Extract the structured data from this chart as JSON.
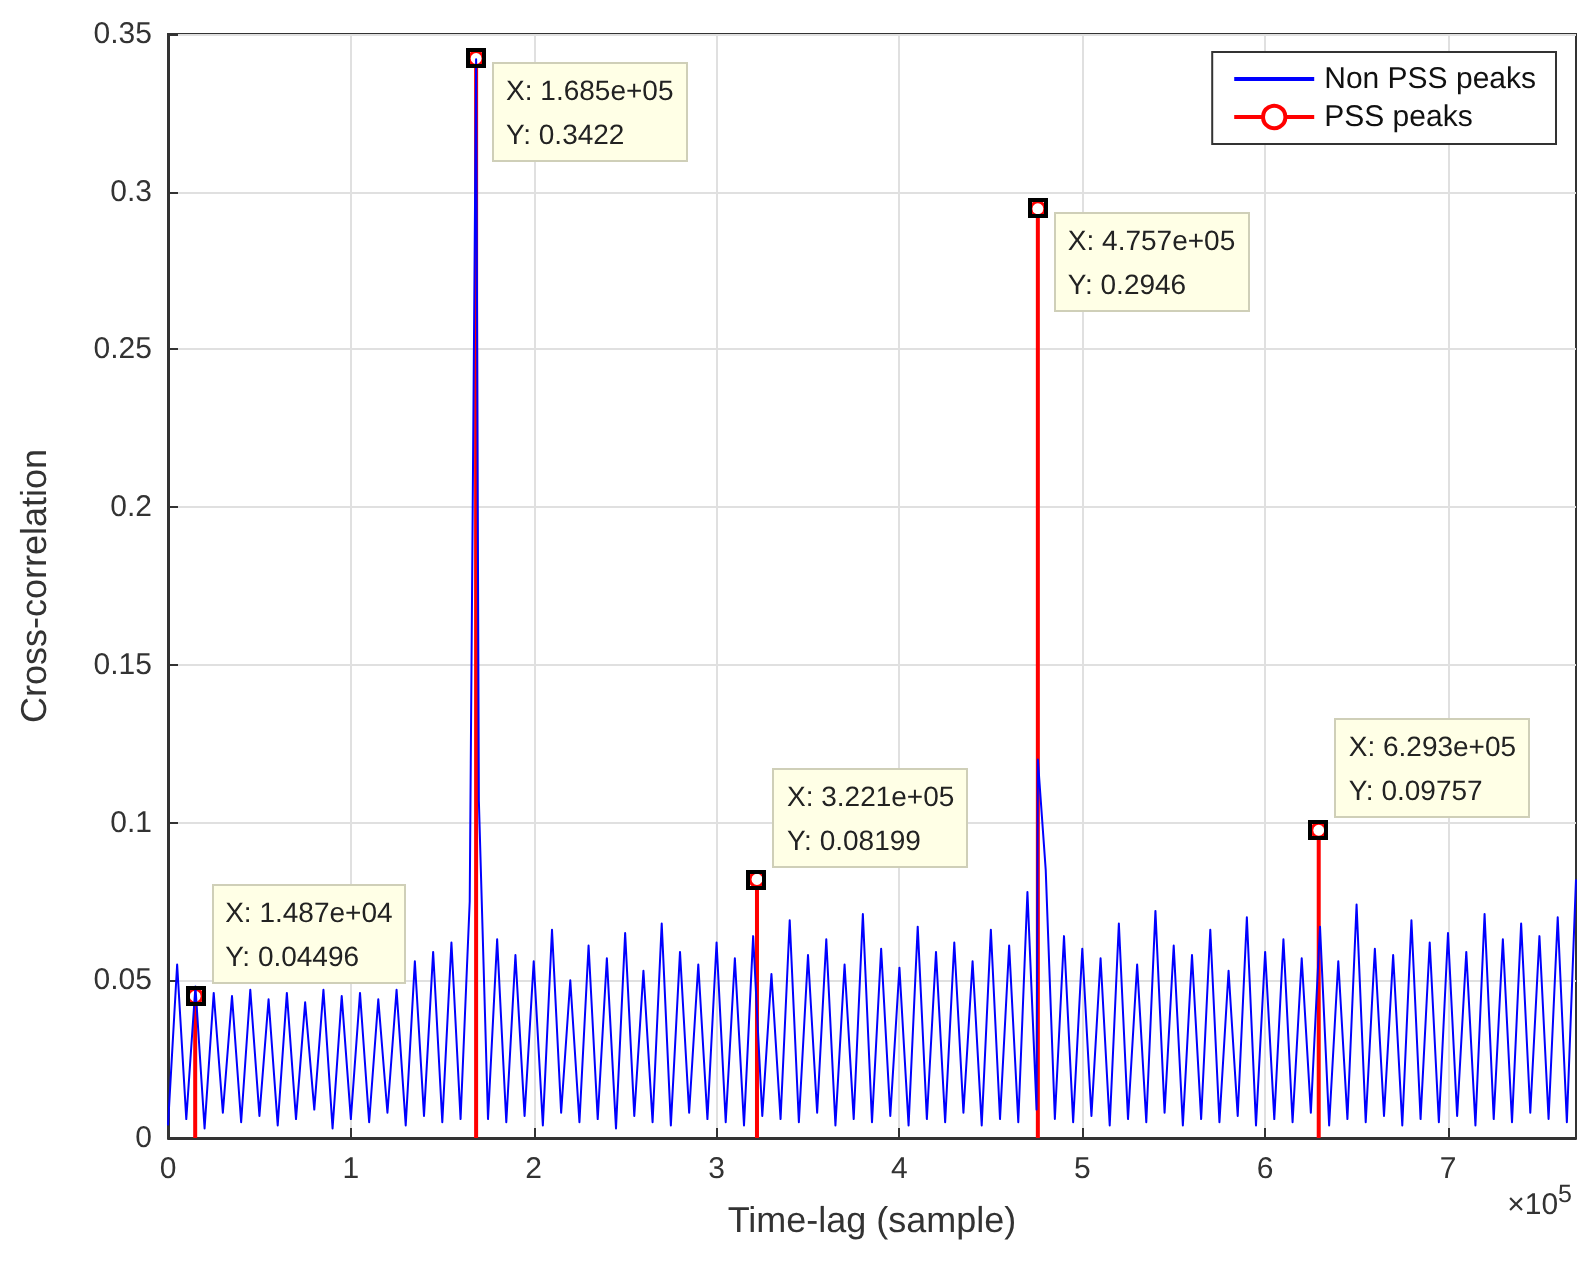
{
  "chart_data": {
    "type": "line",
    "xlabel": "Time-lag (sample)",
    "ylabel": "Cross-correlation",
    "xlim": [
      0,
      7.7
    ],
    "xticks": [
      0,
      1,
      2,
      3,
      4,
      5,
      6,
      7
    ],
    "ylim": [
      0,
      0.35
    ],
    "yticks": [
      0,
      0.05,
      0.1,
      0.15,
      0.2,
      0.25,
      0.3,
      0.35
    ],
    "grid": true,
    "legend": "top right",
    "series": [
      {
        "name": "Non PSS peaks",
        "type": "line",
        "color": "#0000ff",
        "marker": "none",
        "line_style": "solid",
        "x": [
          0,
          0.05,
          0.1,
          0.15,
          0.2,
          0.25,
          0.3,
          0.35,
          0.4,
          0.45,
          0.5,
          0.55,
          0.6,
          0.65,
          0.7,
          0.75,
          0.8,
          0.85,
          0.9,
          0.95,
          1,
          1.05,
          1.1,
          1.15,
          1.2,
          1.25,
          1.3,
          1.35,
          1.4,
          1.45,
          1.5,
          1.55,
          1.6,
          1.65,
          1.685,
          1.7,
          1.75,
          1.8,
          1.85,
          1.9,
          1.95,
          2,
          2.05,
          2.1,
          2.15,
          2.2,
          2.25,
          2.3,
          2.35,
          2.4,
          2.45,
          2.5,
          2.55,
          2.6,
          2.65,
          2.7,
          2.75,
          2.8,
          2.85,
          2.9,
          2.95,
          3,
          3.05,
          3.1,
          3.15,
          3.2,
          3.25,
          3.3,
          3.35,
          3.4,
          3.45,
          3.5,
          3.55,
          3.6,
          3.65,
          3.7,
          3.75,
          3.8,
          3.85,
          3.9,
          3.95,
          4,
          4.05,
          4.1,
          4.15,
          4.2,
          4.25,
          4.3,
          4.35,
          4.4,
          4.45,
          4.5,
          4.55,
          4.6,
          4.65,
          4.7,
          4.75,
          4.757,
          4.8,
          4.85,
          4.9,
          4.95,
          5,
          5.05,
          5.1,
          5.15,
          5.2,
          5.25,
          5.3,
          5.35,
          5.4,
          5.45,
          5.5,
          5.55,
          5.6,
          5.65,
          5.7,
          5.75,
          5.8,
          5.85,
          5.9,
          5.95,
          6,
          6.05,
          6.1,
          6.15,
          6.2,
          6.25,
          6.3,
          6.35,
          6.4,
          6.45,
          6.5,
          6.55,
          6.6,
          6.65,
          6.7,
          6.75,
          6.8,
          6.85,
          6.9,
          6.95,
          7,
          7.05,
          7.1,
          7.15,
          7.2,
          7.25,
          7.3,
          7.35,
          7.4,
          7.45,
          7.5,
          7.55,
          7.6,
          7.65,
          7.7
        ],
        "values": [
          0.004,
          0.055,
          0.006,
          0.048,
          0.003,
          0.046,
          0.008,
          0.045,
          0.005,
          0.047,
          0.007,
          0.044,
          0.004,
          0.046,
          0.006,
          0.043,
          0.009,
          0.047,
          0.003,
          0.045,
          0.006,
          0.046,
          0.005,
          0.044,
          0.008,
          0.047,
          0.004,
          0.056,
          0.007,
          0.059,
          0.005,
          0.062,
          0.006,
          0.075,
          0.342,
          0.107,
          0.006,
          0.063,
          0.005,
          0.058,
          0.007,
          0.056,
          0.004,
          0.066,
          0.008,
          0.05,
          0.005,
          0.061,
          0.006,
          0.057,
          0.003,
          0.065,
          0.007,
          0.053,
          0.005,
          0.068,
          0.004,
          0.059,
          0.008,
          0.055,
          0.006,
          0.062,
          0.005,
          0.057,
          0.004,
          0.064,
          0.007,
          0.052,
          0.006,
          0.069,
          0.005,
          0.058,
          0.008,
          0.063,
          0.004,
          0.055,
          0.006,
          0.071,
          0.005,
          0.06,
          0.007,
          0.054,
          0.004,
          0.067,
          0.006,
          0.059,
          0.005,
          0.062,
          0.008,
          0.056,
          0.004,
          0.066,
          0.006,
          0.061,
          0.005,
          0.078,
          0.009,
          0.12,
          0.085,
          0.006,
          0.064,
          0.005,
          0.06,
          0.007,
          0.057,
          0.004,
          0.068,
          0.006,
          0.055,
          0.005,
          0.072,
          0.008,
          0.061,
          0.004,
          0.058,
          0.006,
          0.066,
          0.005,
          0.053,
          0.007,
          0.07,
          0.004,
          0.059,
          0.006,
          0.063,
          0.005,
          0.057,
          0.008,
          0.067,
          0.004,
          0.056,
          0.006,
          0.074,
          0.005,
          0.06,
          0.007,
          0.058,
          0.004,
          0.069,
          0.006,
          0.062,
          0.005,
          0.065,
          0.007,
          0.059,
          0.004,
          0.071,
          0.006,
          0.063,
          0.005,
          0.068,
          0.008,
          0.064,
          0.006,
          0.07,
          0.005,
          0.082
        ]
      },
      {
        "name": "PSS peaks",
        "type": "lollipop",
        "color": "#ff0000",
        "marker": "circle",
        "line_style": "solid",
        "x": [
          0.1487,
          1.685,
          3.221,
          4.757,
          6.293
        ],
        "values": [
          0.04496,
          0.3422,
          0.08199,
          0.2946,
          0.09757
        ]
      }
    ],
    "annotations": [
      {
        "text": "X: 1.487e+04\nY: 0.04496",
        "x": 0.1487,
        "y": 0.04496
      },
      {
        "text": "X: 1.685e+05\nY: 0.3422",
        "x": 1.685,
        "y": 0.3422
      },
      {
        "text": "X: 3.221e+05\nY: 0.08199",
        "x": 3.221,
        "y": 0.08199
      },
      {
        "text": "X: 4.757e+05\nY: 0.2946",
        "x": 4.757,
        "y": 0.2946
      },
      {
        "text": "X: 6.293e+05\nY: 0.09757",
        "x": 6.293,
        "y": 0.09757
      },
      "×10$^{5}$"
    ]
  }
}
